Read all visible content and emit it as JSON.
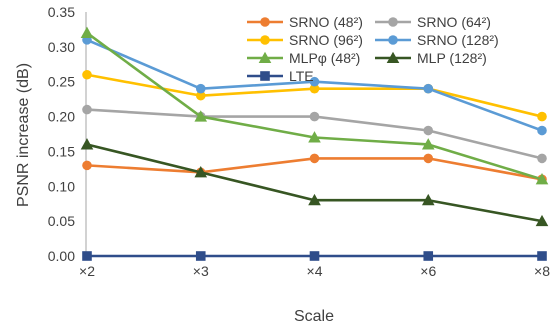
{
  "chart_data": {
    "type": "line",
    "title": "",
    "xlabel": "Scale",
    "ylabel": "PSNR increase (dB)",
    "categories": [
      "×2",
      "×3",
      "×4",
      "×6",
      "×8"
    ],
    "ylim": [
      0,
      0.35
    ],
    "yticks": [
      "0.00",
      "0.05",
      "0.10",
      "0.15",
      "0.20",
      "0.25",
      "0.30",
      "0.35"
    ],
    "grid": false,
    "legend_position": "top-right",
    "series": [
      {
        "name": "SRNO (48²)",
        "color": "#ED7D31",
        "marker": "circle",
        "values": [
          0.13,
          0.12,
          0.14,
          0.14,
          0.11
        ]
      },
      {
        "name": "SRNO (64²)",
        "color": "#A5A5A5",
        "marker": "circle",
        "values": [
          0.21,
          0.2,
          0.2,
          0.18,
          0.14
        ]
      },
      {
        "name": "SRNO (96²)",
        "color": "#FFC000",
        "marker": "circle",
        "values": [
          0.26,
          0.23,
          0.24,
          0.24,
          0.2
        ]
      },
      {
        "name": "SRNO (128²)",
        "color": "#5B9BD5",
        "marker": "circle",
        "values": [
          0.31,
          0.24,
          0.25,
          0.24,
          0.18
        ]
      },
      {
        "name": "MLPφ (48²)",
        "color": "#70AD47",
        "marker": "triangle",
        "values": [
          0.32,
          0.2,
          0.17,
          0.16,
          0.11
        ]
      },
      {
        "name": "MLP (128²)",
        "color": "#375623",
        "marker": "triangle",
        "values": [
          0.16,
          0.12,
          0.08,
          0.08,
          0.05
        ]
      },
      {
        "name": "LTE",
        "color": "#2F4D8A",
        "marker": "square",
        "values": [
          0.0,
          0.0,
          0.0,
          0.0,
          0.0
        ]
      }
    ]
  }
}
